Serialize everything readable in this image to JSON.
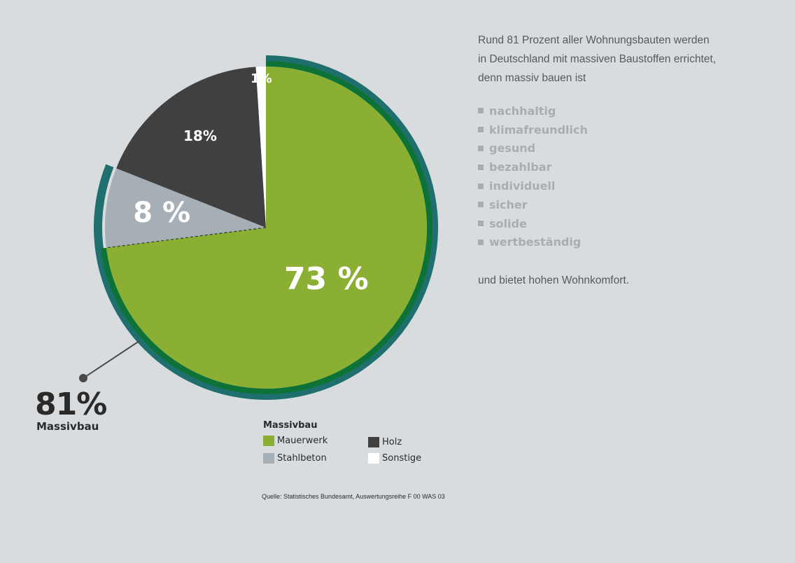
{
  "chart_data": {
    "type": "pie",
    "slices": [
      {
        "label": "Mauerwerk",
        "value": 73,
        "display": "73 %",
        "color": "#8aaf33"
      },
      {
        "label": "Stahlbeton",
        "value": 8,
        "display": "8 %",
        "color": "#a6afb5"
      },
      {
        "label": "Holz",
        "value": 18,
        "display": "18%",
        "color": "#404040"
      },
      {
        "label": "Sonstige",
        "value": 1,
        "display": "1%",
        "color": "#ffffff"
      }
    ],
    "highlight": {
      "value": "81%",
      "label": "Massivbau",
      "ring_color": "#1f6f6e",
      "inner_ring_color": "#0d7236"
    },
    "legend": {
      "title": "Massivbau",
      "items": [
        {
          "label": "Mauerwerk",
          "color": "#8aaf33"
        },
        {
          "label": "Stahlbeton",
          "color": "#a6afb5"
        },
        {
          "label": "Holz",
          "color": "#404040"
        },
        {
          "label": "Sonstige",
          "color": "#ffffff"
        }
      ]
    },
    "source": "Quelle: Statistisches Bundesamt, Auswertungsreihe F 00 WAS 03"
  },
  "text": {
    "intro": [
      "Rund 81 Prozent aller Wohnungsbauten werden",
      "in Deutschland mit massiven Baustoffen errichtet,",
      "denn massiv bauen ist"
    ],
    "benefits": [
      "nachhaltig",
      "klimafreundlich",
      "gesund",
      "bezahlbar",
      "individuell",
      "sicher",
      "solide",
      "wertbeständig"
    ],
    "outro": "und bietet hohen Wohnkomfort."
  }
}
